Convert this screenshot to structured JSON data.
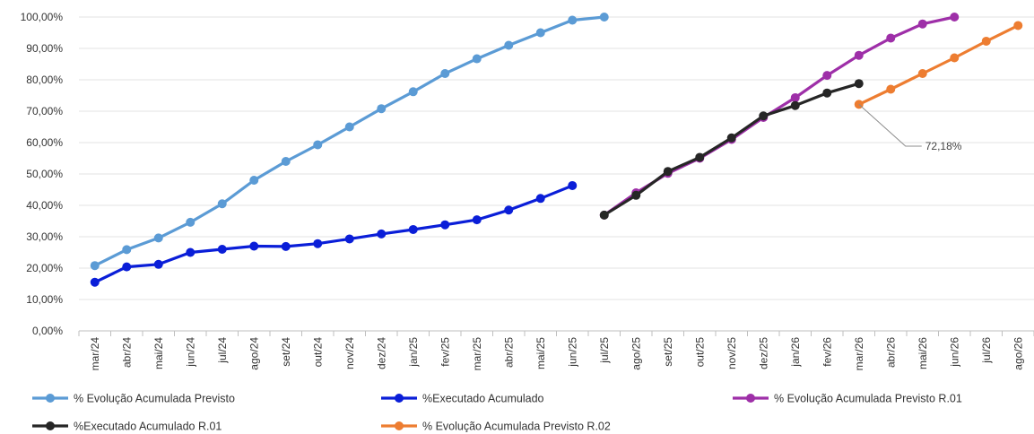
{
  "chart_data": {
    "type": "line",
    "categories": [
      "mar/24",
      "abr/24",
      "mai/24",
      "jun/24",
      "jul/24",
      "ago/24",
      "set/24",
      "out/24",
      "nov/24",
      "dez/24",
      "jan/25",
      "fev/25",
      "mar/25",
      "abr/25",
      "mai/25",
      "jun/25",
      "jul/25",
      "ago/25",
      "set/25",
      "out/25",
      "nov/25",
      "dez/25",
      "jan/26",
      "fev/26",
      "mar/26",
      "abr/26",
      "mai/26",
      "jun/26",
      "jul/26",
      "ago/26"
    ],
    "y_tick_labels": [
      "0,00%",
      "10,00%",
      "20,00%",
      "30,00%",
      "40,00%",
      "50,00%",
      "60,00%",
      "70,00%",
      "80,00%",
      "90,00%",
      "100,00%"
    ],
    "ylim": [
      0,
      100
    ],
    "grid": "horizontal",
    "legend_position": "bottom",
    "series": [
      {
        "name": "% Evolução Acumulada Previsto",
        "color": "#5b9bd5",
        "values": [
          20.8,
          25.9,
          29.6,
          34.6,
          40.5,
          48.0,
          54.0,
          59.3,
          65.0,
          70.8,
          76.2,
          82.0,
          86.7,
          91.0,
          95.0,
          99.0,
          100.0,
          null,
          null,
          null,
          null,
          null,
          null,
          null,
          null,
          null,
          null,
          null,
          null,
          null
        ]
      },
      {
        "name": "%Executado Acumulado",
        "color": "#0a1ed8",
        "values": [
          15.5,
          20.4,
          21.2,
          25.0,
          26.0,
          27.0,
          26.9,
          27.8,
          29.3,
          30.9,
          32.3,
          33.8,
          35.4,
          38.5,
          42.2,
          46.3,
          null,
          null,
          null,
          null,
          null,
          null,
          null,
          null,
          null,
          null,
          null,
          null,
          null,
          null
        ]
      },
      {
        "name": "% Evolução Acumulada Previsto R.01",
        "color": "#9e2fa8",
        "values": [
          null,
          null,
          null,
          null,
          null,
          null,
          null,
          null,
          null,
          null,
          null,
          null,
          null,
          null,
          null,
          null,
          36.9,
          44.0,
          50.2,
          55.0,
          61.0,
          68.0,
          74.3,
          81.4,
          87.8,
          93.3,
          97.8,
          100.0,
          null,
          null
        ]
      },
      {
        "name": "%Executado Acumulado R.01",
        "color": "#262626",
        "values": [
          null,
          null,
          null,
          null,
          null,
          null,
          null,
          null,
          null,
          null,
          null,
          null,
          null,
          null,
          null,
          null,
          36.9,
          43.2,
          50.8,
          55.3,
          61.5,
          68.5,
          71.8,
          75.8,
          78.8,
          null,
          null,
          null,
          null,
          null
        ]
      },
      {
        "name": "% Evolução Acumulada Previsto R.02",
        "color": "#ed7d31",
        "values": [
          null,
          null,
          null,
          null,
          null,
          null,
          null,
          null,
          null,
          null,
          null,
          null,
          null,
          null,
          null,
          null,
          null,
          null,
          null,
          null,
          null,
          null,
          null,
          null,
          72.18,
          77.0,
          82.0,
          87.0,
          92.3,
          97.3
        ]
      }
    ],
    "annotations": [
      {
        "text": "72,18%",
        "category": "mar/26",
        "value": 72.18
      }
    ]
  }
}
